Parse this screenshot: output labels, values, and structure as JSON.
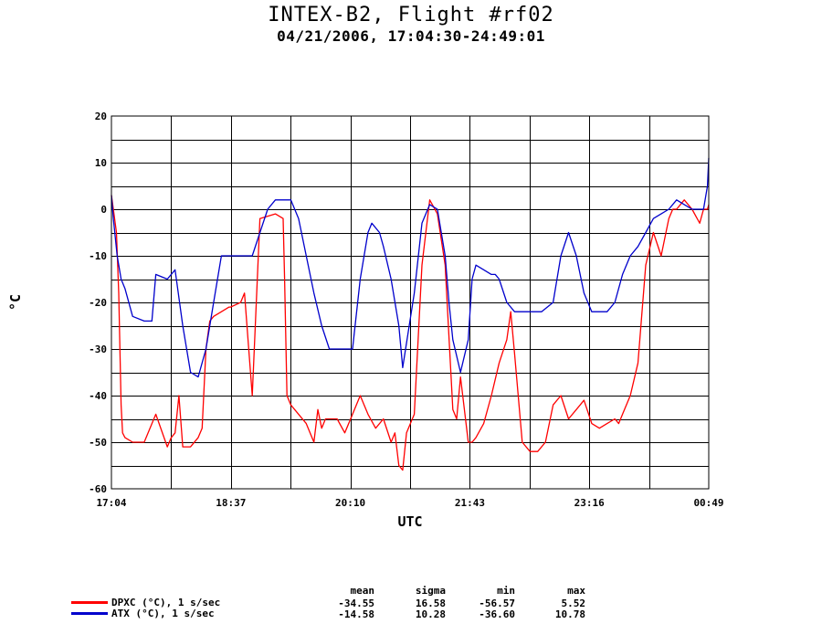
{
  "title": "INTEX-B2, Flight #rf02",
  "subtitle": "04/21/2006, 17:04:30-24:49:01",
  "chart_data": {
    "type": "line",
    "xlabel": "UTC",
    "ylabel": "°C",
    "xticks": [
      "17:04",
      "18:37",
      "20:10",
      "21:43",
      "23:16",
      "00:49"
    ],
    "x_range_hours": [
      17.075,
      24.817
    ],
    "ylim": [
      -60,
      20
    ],
    "yticks": [
      -60,
      -50,
      -40,
      -30,
      -20,
      -10,
      0,
      10,
      20
    ],
    "grid": true,
    "series": [
      {
        "name": "DPXC (°C), 1 s/sec",
        "color": "#ff0000",
        "x": [
          17.075,
          17.1,
          17.14,
          17.17,
          17.2,
          17.22,
          17.25,
          17.35,
          17.5,
          17.65,
          17.8,
          17.85,
          17.9,
          17.95,
          18.0,
          18.1,
          18.2,
          18.25,
          18.3,
          18.35,
          18.4,
          18.5,
          18.6,
          18.62,
          18.75,
          18.8,
          18.9,
          19.0,
          19.2,
          19.3,
          19.32,
          19.35,
          19.4,
          19.5,
          19.6,
          19.7,
          19.75,
          19.8,
          19.85,
          19.9,
          20.0,
          20.1,
          20.2,
          20.3,
          20.4,
          20.5,
          20.6,
          20.7,
          20.75,
          20.8,
          20.85,
          20.9,
          21.0,
          21.1,
          21.2,
          21.3,
          21.4,
          21.5,
          21.55,
          21.6,
          21.7,
          21.75,
          21.8,
          21.9,
          22.0,
          22.1,
          22.2,
          22.25,
          22.3,
          22.4,
          22.5,
          22.6,
          22.7,
          22.75,
          22.8,
          22.9,
          23.0,
          23.1,
          23.2,
          23.3,
          23.4,
          23.5,
          23.6,
          23.65,
          23.7,
          23.8,
          23.9,
          24.0,
          24.1,
          24.2,
          24.3,
          24.35,
          24.4,
          24.5,
          24.6,
          24.7,
          24.75,
          24.8,
          24.817
        ],
        "values": [
          3,
          0,
          -5,
          -18,
          -42,
          -48,
          -49,
          -50,
          -50,
          -44,
          -51,
          -49,
          -48,
          -40,
          -51,
          -51,
          -49,
          -47,
          -30,
          -24,
          -23,
          -22,
          -21,
          -21,
          -20,
          -18,
          -40,
          -2,
          -1,
          -2,
          -15,
          -40,
          -42,
          -44,
          -46,
          -50,
          -43,
          -47,
          -45,
          -45,
          -45,
          -48,
          -44,
          -40,
          -44,
          -47,
          -45,
          -50,
          -48,
          -55,
          -56,
          -48,
          -44,
          -12,
          2,
          -1,
          -12,
          -43,
          -45,
          -36,
          -50,
          -50,
          -49,
          -46,
          -40,
          -33,
          -28,
          -22,
          -31,
          -50,
          -52,
          -52,
          -50,
          -46,
          -42,
          -40,
          -45,
          -43,
          -41,
          -46,
          -47,
          -46,
          -45,
          -46,
          -44,
          -40,
          -33,
          -12,
          -5,
          -10,
          -2,
          0,
          0,
          2,
          0,
          -3,
          0,
          0,
          1
        ]
      },
      {
        "name": "ATX (°C), 1 s/sec",
        "color": "#0000cc",
        "x": [
          17.075,
          17.1,
          17.15,
          17.2,
          17.25,
          17.35,
          17.5,
          17.6,
          17.65,
          17.8,
          17.9,
          18.0,
          18.1,
          18.2,
          18.3,
          18.4,
          18.5,
          18.7,
          18.9,
          19.0,
          19.1,
          19.2,
          19.4,
          19.5,
          19.6,
          19.7,
          19.8,
          19.9,
          20.0,
          20.2,
          20.3,
          20.4,
          20.45,
          20.55,
          20.6,
          20.7,
          20.8,
          20.85,
          21.0,
          21.1,
          21.2,
          21.3,
          21.4,
          21.45,
          21.5,
          21.6,
          21.7,
          21.75,
          21.8,
          21.9,
          22.0,
          22.05,
          22.1,
          22.2,
          22.3,
          22.5,
          22.6,
          22.65,
          22.8,
          22.9,
          23.0,
          23.1,
          23.2,
          23.3,
          23.4,
          23.5,
          23.6,
          23.7,
          23.8,
          23.9,
          24.0,
          24.1,
          24.2,
          24.3,
          24.4,
          24.5,
          24.6,
          24.65,
          24.7,
          24.75,
          24.8,
          24.817
        ],
        "values": [
          3,
          -2,
          -10,
          -15,
          -17,
          -23,
          -24,
          -24,
          -14,
          -15,
          -13,
          -25,
          -35,
          -36,
          -30,
          -20,
          -10,
          -10,
          -10,
          -5,
          0,
          2,
          2,
          -2,
          -10,
          -18,
          -25,
          -30,
          -30,
          -30,
          -15,
          -5,
          -3,
          -5,
          -8,
          -15,
          -25,
          -34,
          -18,
          -3,
          1,
          0,
          -10,
          -20,
          -28,
          -35,
          -28,
          -15,
          -12,
          -13,
          -14,
          -14,
          -15,
          -20,
          -22,
          -22,
          -22,
          -22,
          -20,
          -10,
          -5,
          -10,
          -18,
          -22,
          -22,
          -22,
          -20,
          -14,
          -10,
          -8,
          -5,
          -2,
          -1,
          0,
          2,
          1,
          0,
          0,
          0,
          0,
          5,
          11
        ]
      }
    ],
    "stats": {
      "headers": [
        "mean",
        "sigma",
        "min",
        "max"
      ],
      "rows": [
        {
          "label": "DPXC (°C), 1 s/sec",
          "values": [
            "-34.55",
            "16.58",
            "-56.57",
            "5.52"
          ]
        },
        {
          "label": "ATX (°C), 1 s/sec",
          "values": [
            "-14.58",
            "10.28",
            "-36.60",
            "10.78"
          ]
        }
      ]
    }
  }
}
